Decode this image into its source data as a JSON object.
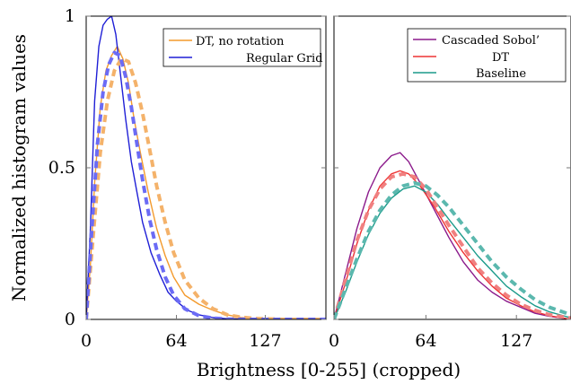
{
  "chart_data": {
    "type": "line",
    "ylabel": "Normalized histogram values",
    "xlabel": "Brightness [0-255] (cropped)",
    "y_ticks": [
      "0",
      "0.5",
      "1"
    ],
    "ylim": [
      0,
      1
    ],
    "panels": [
      {
        "xlim": [
          0,
          170
        ],
        "x_ticks": [
          "0",
          "64",
          "127"
        ],
        "x_tick_values": [
          0,
          64,
          127
        ],
        "legend_position": "top-right",
        "legend": [
          {
            "label": "DT, no rotation",
            "color": "#f39a2c"
          },
          {
            "label": "Regular Grid",
            "color": "#1f1fd6"
          }
        ],
        "series": [
          {
            "name": "DT, no rotation",
            "color": "#f39a2c",
            "style": "solid",
            "x": [
              0,
              3,
              6,
              10,
              14,
              18,
              22,
              26,
              30,
              34,
              38,
              44,
              50,
              56,
              62,
              70,
              80,
              90,
              100,
              110,
              120,
              140,
              170
            ],
            "y": [
              0.0,
              0.18,
              0.45,
              0.7,
              0.82,
              0.87,
              0.9,
              0.86,
              0.78,
              0.66,
              0.56,
              0.42,
              0.3,
              0.21,
              0.14,
              0.08,
              0.05,
              0.03,
              0.015,
              0.006,
              0.003,
              0.0,
              0.0
            ]
          },
          {
            "name": "Regular Grid",
            "color": "#1f1fd6",
            "style": "solid",
            "x": [
              0,
              3,
              6,
              9,
              12,
              15,
              18,
              21,
              24,
              28,
              32,
              36,
              40,
              46,
              52,
              58,
              64,
              72,
              80,
              90,
              100,
              120,
              170
            ],
            "y": [
              0.0,
              0.3,
              0.72,
              0.9,
              0.97,
              0.99,
              1.0,
              0.94,
              0.82,
              0.66,
              0.52,
              0.42,
              0.32,
              0.22,
              0.15,
              0.09,
              0.06,
              0.03,
              0.015,
              0.006,
              0.002,
              0.0,
              0.0
            ]
          },
          {
            "name": "",
            "color": "#f4b26a",
            "style": "dashed",
            "x": [
              0,
              5,
              10,
              15,
              20,
              25,
              30,
              35,
              40,
              45,
              50,
              56,
              62,
              70,
              80,
              90,
              100,
              110,
              120,
              140,
              170
            ],
            "y": [
              0.0,
              0.28,
              0.55,
              0.72,
              0.82,
              0.86,
              0.85,
              0.78,
              0.68,
              0.56,
              0.44,
              0.32,
              0.22,
              0.13,
              0.07,
              0.035,
              0.015,
              0.007,
              0.003,
              0.0,
              0.0
            ]
          },
          {
            "name": "",
            "color": "#6b6bf5",
            "style": "dashed",
            "x": [
              0,
              4,
              8,
              12,
              16,
              20,
              24,
              28,
              32,
              36,
              40,
              45,
              50,
              56,
              62,
              70,
              80,
              90,
              100,
              120,
              170
            ],
            "y": [
              0.0,
              0.3,
              0.58,
              0.75,
              0.84,
              0.88,
              0.87,
              0.8,
              0.7,
              0.58,
              0.46,
              0.33,
              0.23,
              0.14,
              0.08,
              0.035,
              0.012,
              0.004,
              0.001,
              0.0,
              0.0
            ]
          }
        ]
      },
      {
        "xlim": [
          0,
          165
        ],
        "x_ticks": [
          "0",
          "64",
          "127"
        ],
        "x_tick_values": [
          0,
          64,
          127
        ],
        "legend_position": "top-right",
        "legend": [
          {
            "label": "Cascaded Sobol’",
            "color": "#8b1a8b"
          },
          {
            "label": "DT",
            "color": "#ee3333"
          },
          {
            "label": "Baseline",
            "color": "#1a9a8a"
          }
        ],
        "series": [
          {
            "name": "Cascaded Sobol’",
            "color": "#8b1a8b",
            "style": "solid",
            "x": [
              0,
              8,
              16,
              24,
              32,
              40,
              46,
              52,
              60,
              70,
              80,
              90,
              100,
              110,
              120,
              130,
              140,
              150,
              165
            ],
            "y": [
              0.0,
              0.15,
              0.3,
              0.42,
              0.5,
              0.54,
              0.55,
              0.52,
              0.45,
              0.36,
              0.27,
              0.19,
              0.13,
              0.09,
              0.06,
              0.04,
              0.02,
              0.01,
              0.0
            ]
          },
          {
            "name": "DT",
            "color": "#ee3333",
            "style": "solid",
            "x": [
              0,
              8,
              16,
              24,
              32,
              40,
              46,
              52,
              60,
              70,
              80,
              90,
              100,
              110,
              120,
              130,
              140,
              150,
              165
            ],
            "y": [
              0.0,
              0.12,
              0.25,
              0.36,
              0.44,
              0.48,
              0.49,
              0.48,
              0.44,
              0.37,
              0.29,
              0.22,
              0.16,
              0.11,
              0.07,
              0.045,
              0.025,
              0.012,
              0.0
            ]
          },
          {
            "name": "Baseline",
            "color": "#1a9a8a",
            "style": "solid",
            "x": [
              0,
              8,
              16,
              24,
              32,
              40,
              48,
              56,
              64,
              72,
              80,
              90,
              100,
              110,
              120,
              130,
              140,
              150,
              165
            ],
            "y": [
              0.0,
              0.09,
              0.19,
              0.28,
              0.35,
              0.4,
              0.43,
              0.44,
              0.42,
              0.38,
              0.33,
              0.27,
              0.21,
              0.16,
              0.11,
              0.075,
              0.045,
              0.025,
              0.005
            ]
          },
          {
            "name": "",
            "color": "#f08080",
            "style": "dashed",
            "x": [
              0,
              8,
              16,
              24,
              32,
              40,
              48,
              56,
              64,
              72,
              80,
              90,
              100,
              110,
              120,
              130,
              140,
              150,
              165
            ],
            "y": [
              0.0,
              0.13,
              0.26,
              0.36,
              0.43,
              0.47,
              0.48,
              0.47,
              0.43,
              0.37,
              0.31,
              0.24,
              0.17,
              0.12,
              0.08,
              0.05,
              0.03,
              0.015,
              0.004
            ]
          },
          {
            "name": "",
            "color": "#5bb8ae",
            "style": "dashed",
            "x": [
              0,
              8,
              16,
              24,
              32,
              40,
              48,
              56,
              64,
              72,
              80,
              90,
              100,
              110,
              120,
              130,
              140,
              150,
              165
            ],
            "y": [
              0.0,
              0.1,
              0.2,
              0.29,
              0.36,
              0.41,
              0.44,
              0.45,
              0.44,
              0.41,
              0.37,
              0.31,
              0.25,
              0.19,
              0.14,
              0.1,
              0.065,
              0.04,
              0.015
            ]
          }
        ]
      }
    ]
  }
}
